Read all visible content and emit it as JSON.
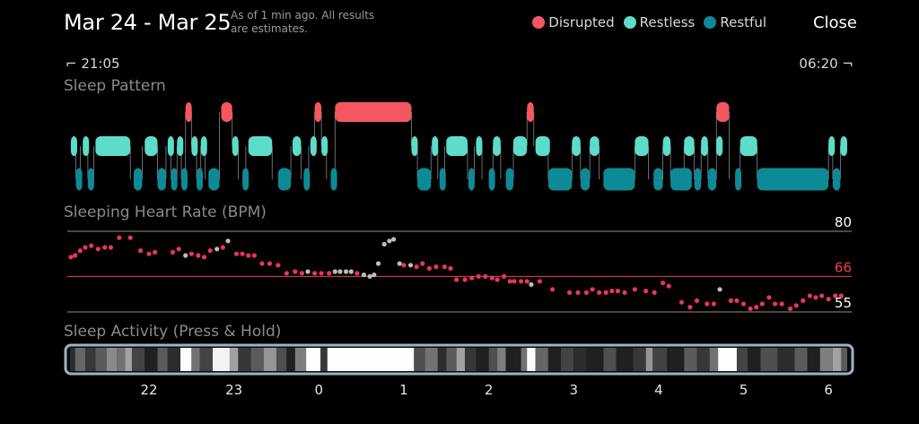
{
  "header": {
    "title": "Mar 24 - Mar 25",
    "subtitle": "As of 1 min ago. All results are estimates.",
    "close_label": "Close"
  },
  "legend": [
    {
      "name": "Disrupted",
      "color": "#f55760"
    },
    {
      "name": "Restless",
      "color": "#5ddcc8"
    },
    {
      "name": "Restful",
      "color": "#0e8a96"
    }
  ],
  "timeline": {
    "start_label": "21:05",
    "end_label": "06:20"
  },
  "sections": {
    "sleep_pattern": "Sleep Pattern",
    "heart_rate": "Sleeping Heart Rate (BPM)",
    "activity": "Sleep Activity (Press & Hold)"
  },
  "chart_data": [
    {
      "type": "bar",
      "name": "sleep-pattern",
      "levels": [
        "Disrupted",
        "Restless",
        "Restful"
      ],
      "segments": [
        {
          "l": 1,
          "s": 21.08,
          "e": 21.14
        },
        {
          "l": 2,
          "s": 21.14,
          "e": 21.19
        },
        {
          "l": 1,
          "s": 21.22,
          "e": 21.28
        },
        {
          "l": 2,
          "s": 21.28,
          "e": 21.35
        },
        {
          "l": 1,
          "s": 21.37,
          "e": 21.78
        },
        {
          "l": 2,
          "s": 21.82,
          "e": 21.92
        },
        {
          "l": 1,
          "s": 21.95,
          "e": 22.1
        },
        {
          "l": 2,
          "s": 22.1,
          "e": 22.2
        },
        {
          "l": 1,
          "s": 22.22,
          "e": 22.26
        },
        {
          "l": 2,
          "s": 22.26,
          "e": 22.33
        },
        {
          "l": 1,
          "s": 22.33,
          "e": 22.38
        },
        {
          "l": 2,
          "s": 22.38,
          "e": 22.43
        },
        {
          "l": 0,
          "s": 22.43,
          "e": 22.5
        },
        {
          "l": 1,
          "s": 22.5,
          "e": 22.56
        },
        {
          "l": 2,
          "s": 22.56,
          "e": 22.61
        },
        {
          "l": 1,
          "s": 22.61,
          "e": 22.66
        },
        {
          "l": 2,
          "s": 22.7,
          "e": 22.83
        },
        {
          "l": 0,
          "s": 22.85,
          "e": 22.98
        },
        {
          "l": 1,
          "s": 22.98,
          "e": 23.05
        },
        {
          "l": 2,
          "s": 23.1,
          "e": 23.14
        },
        {
          "l": 1,
          "s": 23.17,
          "e": 23.45
        },
        {
          "l": 2,
          "s": 23.52,
          "e": 23.67
        },
        {
          "l": 1,
          "s": 23.69,
          "e": 23.79
        },
        {
          "l": 2,
          "s": 23.82,
          "e": 23.88
        },
        {
          "l": 1,
          "s": 23.9,
          "e": 23.95
        },
        {
          "l": 0,
          "s": 23.95,
          "e": 24.03
        },
        {
          "l": 1,
          "s": 24.03,
          "e": 24.09
        },
        {
          "l": 2,
          "s": 24.14,
          "e": 24.19
        },
        {
          "l": 0,
          "s": 24.19,
          "e": 25.09
        },
        {
          "l": 1,
          "s": 25.09,
          "e": 25.16
        },
        {
          "l": 2,
          "s": 25.16,
          "e": 25.32
        },
        {
          "l": 1,
          "s": 25.33,
          "e": 25.4
        },
        {
          "l": 2,
          "s": 25.42,
          "e": 25.48
        },
        {
          "l": 1,
          "s": 25.5,
          "e": 25.75
        },
        {
          "l": 2,
          "s": 25.76,
          "e": 25.83
        },
        {
          "l": 1,
          "s": 25.85,
          "e": 25.92
        },
        {
          "l": 2,
          "s": 26.0,
          "e": 26.05
        },
        {
          "l": 1,
          "s": 26.05,
          "e": 26.14
        },
        {
          "l": 2,
          "s": 26.2,
          "e": 26.29
        },
        {
          "l": 1,
          "s": 26.29,
          "e": 26.45
        },
        {
          "l": 0,
          "s": 26.45,
          "e": 26.53
        },
        {
          "l": 1,
          "s": 26.55,
          "e": 26.72
        },
        {
          "l": 2,
          "s": 26.7,
          "e": 26.98
        },
        {
          "l": 1,
          "s": 26.98,
          "e": 27.08
        },
        {
          "l": 2,
          "s": 27.08,
          "e": 27.19
        },
        {
          "l": 1,
          "s": 27.19,
          "e": 27.3
        },
        {
          "l": 2,
          "s": 27.35,
          "e": 27.72
        },
        {
          "l": 1,
          "s": 27.72,
          "e": 27.88
        },
        {
          "l": 2,
          "s": 27.94,
          "e": 28.05
        },
        {
          "l": 1,
          "s": 28.05,
          "e": 28.14
        },
        {
          "l": 2,
          "s": 28.14,
          "e": 28.39
        },
        {
          "l": 1,
          "s": 28.3,
          "e": 28.42
        },
        {
          "l": 2,
          "s": 28.42,
          "e": 28.5
        },
        {
          "l": 1,
          "s": 28.5,
          "e": 28.58
        },
        {
          "l": 2,
          "s": 28.58,
          "e": 28.68
        },
        {
          "l": 1,
          "s": 28.68,
          "e": 28.72
        },
        {
          "l": 0,
          "s": 28.68,
          "e": 28.83
        },
        {
          "l": 2,
          "s": 28.9,
          "e": 28.96
        },
        {
          "l": 1,
          "s": 28.96,
          "e": 29.16
        },
        {
          "l": 2,
          "s": 29.16,
          "e": 30.0
        },
        {
          "l": 1,
          "s": 30.0,
          "e": 30.05
        },
        {
          "l": 2,
          "s": 30.05,
          "e": 30.14
        },
        {
          "l": 1,
          "s": 30.14,
          "e": 30.22
        }
      ]
    },
    {
      "type": "scatter",
      "name": "sleeping-heart-rate",
      "ytick_labels": [
        "80",
        "66",
        "55"
      ],
      "reference_lines": [
        80,
        66,
        55
      ],
      "ylim": [
        54,
        80
      ],
      "points": [
        [
          21.08,
          72
        ],
        [
          21.13,
          72.5
        ],
        [
          21.19,
          74
        ],
        [
          21.25,
          75
        ],
        [
          21.32,
          75.5
        ],
        [
          21.4,
          74.5
        ],
        [
          21.48,
          75
        ],
        [
          21.55,
          75
        ],
        [
          21.65,
          78
        ],
        [
          21.78,
          78
        ],
        [
          21.9,
          74
        ],
        [
          22.0,
          73
        ],
        [
          22.07,
          73.5
        ],
        [
          22.28,
          73.5
        ],
        [
          22.35,
          74.5
        ],
        [
          22.43,
          72.5,
          "g"
        ],
        [
          22.5,
          73
        ],
        [
          22.58,
          72.5
        ],
        [
          22.65,
          72
        ],
        [
          22.72,
          74
        ],
        [
          22.8,
          74.5,
          "g"
        ],
        [
          22.87,
          75
        ],
        [
          22.93,
          77,
          "g"
        ],
        [
          23.03,
          73
        ],
        [
          23.1,
          73
        ],
        [
          23.17,
          72.5
        ],
        [
          23.24,
          72.5
        ],
        [
          23.33,
          70
        ],
        [
          23.42,
          70
        ],
        [
          23.52,
          69.5
        ],
        [
          23.62,
          67
        ],
        [
          23.72,
          67.5
        ],
        [
          23.8,
          67
        ],
        [
          23.87,
          67.5,
          "g"
        ],
        [
          23.95,
          67
        ],
        [
          24.03,
          67
        ],
        [
          24.12,
          67
        ],
        [
          24.19,
          67.5,
          "g"
        ],
        [
          24.25,
          67.5,
          "g"
        ],
        [
          24.32,
          67.5,
          "g"
        ],
        [
          24.38,
          67.5,
          "g"
        ],
        [
          24.45,
          67
        ],
        [
          24.53,
          66.5,
          "g"
        ],
        [
          24.6,
          66,
          "g"
        ],
        [
          24.65,
          66.5,
          "g"
        ],
        [
          24.7,
          70,
          "g"
        ],
        [
          24.77,
          76,
          "g"
        ],
        [
          24.83,
          77,
          "g"
        ],
        [
          24.88,
          77.5,
          "g"
        ],
        [
          24.95,
          70,
          "g"
        ],
        [
          25.0,
          69.5
        ],
        [
          25.08,
          69.5,
          "g"
        ],
        [
          25.15,
          69
        ],
        [
          25.22,
          70
        ],
        [
          25.3,
          68.5
        ],
        [
          25.38,
          69
        ],
        [
          25.48,
          69
        ],
        [
          25.55,
          68.5
        ],
        [
          25.62,
          65
        ],
        [
          25.72,
          65
        ],
        [
          25.8,
          65.5
        ],
        [
          25.88,
          66
        ],
        [
          25.96,
          66
        ],
        [
          26.04,
          65.5
        ],
        [
          26.1,
          65
        ],
        [
          26.18,
          66
        ],
        [
          26.25,
          64.5
        ],
        [
          26.3,
          64.5
        ],
        [
          26.38,
          64.5
        ],
        [
          26.45,
          64.5
        ],
        [
          26.5,
          63.5,
          "g"
        ],
        [
          26.6,
          64.5
        ],
        [
          26.75,
          62
        ],
        [
          26.95,
          61
        ],
        [
          27.05,
          61
        ],
        [
          27.15,
          61
        ],
        [
          27.22,
          62
        ],
        [
          27.3,
          61
        ],
        [
          27.38,
          61
        ],
        [
          27.45,
          61.5
        ],
        [
          27.52,
          61.5
        ],
        [
          27.6,
          61
        ],
        [
          27.72,
          62
        ],
        [
          27.85,
          61.5
        ],
        [
          27.95,
          61
        ],
        [
          28.05,
          64
        ],
        [
          28.12,
          63
        ],
        [
          28.27,
          58
        ],
        [
          28.37,
          56.5
        ],
        [
          28.45,
          58.5
        ],
        [
          28.57,
          57.5
        ],
        [
          28.65,
          57.5
        ],
        [
          28.72,
          62,
          "g"
        ],
        [
          28.85,
          58.5
        ],
        [
          28.92,
          58.5
        ],
        [
          29.0,
          57.5
        ],
        [
          29.08,
          56
        ],
        [
          29.15,
          56.5
        ],
        [
          29.22,
          57.5
        ],
        [
          29.3,
          59.5
        ],
        [
          29.37,
          57.5
        ],
        [
          29.45,
          57.5
        ],
        [
          29.55,
          56
        ],
        [
          29.62,
          57
        ],
        [
          29.7,
          58.5
        ],
        [
          29.78,
          60
        ],
        [
          29.85,
          59.5
        ],
        [
          29.92,
          60
        ],
        [
          30.0,
          59
        ],
        [
          30.08,
          60
        ],
        [
          30.15,
          60
        ]
      ]
    },
    {
      "type": "heatmap",
      "name": "sleep-activity",
      "xlim": [
        21.07,
        30.22
      ],
      "x_tick_labels": [
        "22",
        "23",
        "0",
        "1",
        "2",
        "3",
        "4",
        "5",
        "6"
      ],
      "x_ticks": [
        22,
        23,
        24,
        25,
        26,
        27,
        28,
        29,
        30
      ],
      "cells": [
        [
          21.07,
          21.13,
          0.1
        ],
        [
          21.13,
          21.25,
          0.35
        ],
        [
          21.25,
          21.37,
          0.15
        ],
        [
          21.37,
          21.5,
          0.3
        ],
        [
          21.5,
          21.62,
          0.5
        ],
        [
          21.62,
          21.72,
          0.4
        ],
        [
          21.72,
          21.8,
          0.6
        ],
        [
          21.8,
          21.95,
          0.2
        ],
        [
          21.95,
          22.1,
          0.05
        ],
        [
          22.1,
          22.22,
          0.3
        ],
        [
          22.22,
          22.37,
          0.1
        ],
        [
          22.37,
          22.5,
          1.0
        ],
        [
          22.5,
          22.6,
          0.4
        ],
        [
          22.6,
          22.75,
          0.2
        ],
        [
          22.75,
          22.95,
          0.95
        ],
        [
          22.95,
          23.05,
          0.6
        ],
        [
          23.05,
          23.2,
          0.15
        ],
        [
          23.2,
          23.35,
          0.3
        ],
        [
          23.35,
          23.5,
          0.55
        ],
        [
          23.5,
          23.62,
          0.25
        ],
        [
          23.62,
          23.72,
          0.05
        ],
        [
          23.72,
          23.85,
          0.45
        ],
        [
          23.85,
          24.02,
          1.0
        ],
        [
          24.02,
          24.1,
          0.15
        ],
        [
          24.1,
          25.12,
          1.0
        ],
        [
          25.12,
          25.25,
          0.25
        ],
        [
          25.25,
          25.4,
          0.4
        ],
        [
          25.4,
          25.5,
          0.1
        ],
        [
          25.5,
          25.62,
          0.3
        ],
        [
          25.62,
          25.72,
          0.6
        ],
        [
          25.72,
          25.85,
          0.15
        ],
        [
          25.85,
          26.0,
          0.05
        ],
        [
          26.0,
          26.1,
          0.25
        ],
        [
          26.1,
          26.2,
          0.45
        ],
        [
          26.2,
          26.38,
          0.05
        ],
        [
          26.38,
          26.45,
          0.4
        ],
        [
          26.45,
          26.55,
          1.0
        ],
        [
          26.55,
          26.7,
          0.35
        ],
        [
          26.7,
          26.85,
          0.05
        ],
        [
          26.85,
          27.0,
          0.2
        ],
        [
          27.0,
          27.15,
          0.1
        ],
        [
          27.15,
          27.35,
          0.05
        ],
        [
          27.35,
          27.5,
          0.25
        ],
        [
          27.5,
          27.7,
          0.05
        ],
        [
          27.7,
          27.85,
          0.15
        ],
        [
          27.85,
          27.93,
          0.55
        ],
        [
          27.93,
          28.1,
          0.2
        ],
        [
          28.1,
          28.3,
          0.05
        ],
        [
          28.3,
          28.45,
          0.3
        ],
        [
          28.45,
          28.6,
          0.15
        ],
        [
          28.6,
          28.7,
          0.4
        ],
        [
          28.7,
          28.92,
          1.0
        ],
        [
          28.92,
          29.05,
          0.2
        ],
        [
          29.05,
          29.2,
          0.05
        ],
        [
          29.2,
          29.4,
          0.25
        ],
        [
          29.4,
          29.6,
          0.1
        ],
        [
          29.6,
          29.75,
          0.3
        ],
        [
          29.75,
          29.9,
          0.05
        ],
        [
          29.9,
          30.05,
          0.45
        ],
        [
          30.05,
          30.15,
          0.6
        ],
        [
          30.15,
          30.22,
          0.3
        ]
      ]
    }
  ]
}
